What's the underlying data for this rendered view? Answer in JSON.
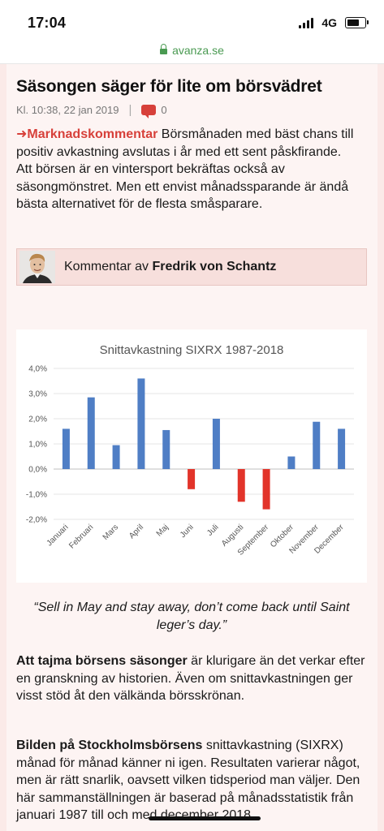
{
  "status_bar": {
    "time": "17:04",
    "network": "4G"
  },
  "browser": {
    "url": "avanza.se"
  },
  "article": {
    "title": "Säsongen säger för lite om börsvädret",
    "timestamp": "Kl. 10:38, 22 jan 2019",
    "comment_count": "0",
    "kicker": "Marknadskommentar",
    "lead_text": " Börsmånaden med bäst chans till positiv avkastning avslutas i år med ett sent påskfirande. Att börsen är en vintersport bekräftas också av säsongmönstret. Men ett envist månadssparande är ändå bästa alternativet för de flesta småsparare.",
    "author_prefix": "Kommentar av ",
    "author_name": "Fredrik von Schantz",
    "quote": "“Sell in May and stay away, don’t come back until Saint leger’s day.”",
    "para1_bold": "Att tajma börsens säsonger",
    "para1_text": " är klurigare än det verkar efter en granskning av historien. Även om snittavkastningen ger visst stöd åt den välkända börsskrönan.",
    "para2_bold": "Bilden på Stockholmsbörsens",
    "para2_text": " snittavkastning (SIXRX) månad för månad känner ni igen. Resultaten varierar något, men är rätt snarlik, oavsett vilken tidsperiod man väljer. Den här sammanställningen är baserad på månadsstatistik från januari 1987 till och med december 2018."
  },
  "colors": {
    "accent": "#d7403a",
    "positive_bar": "#4f7ec5",
    "negative_bar": "#e2342a",
    "url_green": "#4a9a52"
  },
  "chart_data": {
    "type": "bar",
    "title": "Snittavkastning SIXRX 1987-2018",
    "categories": [
      "Januari",
      "Februari",
      "Mars",
      "April",
      "Maj",
      "Juni",
      "Juli",
      "Augusti",
      "September",
      "Oktober",
      "November",
      "December"
    ],
    "values": [
      1.6,
      2.85,
      0.95,
      3.6,
      1.55,
      -0.8,
      2.0,
      -1.3,
      -1.6,
      0.5,
      1.88,
      1.6
    ],
    "yticks": [
      "-2,0%",
      "-1,0%",
      "0,0%",
      "1,0%",
      "2,0%",
      "3,0%",
      "4,0%"
    ],
    "ylim": [
      -2,
      4
    ],
    "xlabel": "",
    "ylabel": "",
    "grid": true,
    "legend": "none"
  }
}
